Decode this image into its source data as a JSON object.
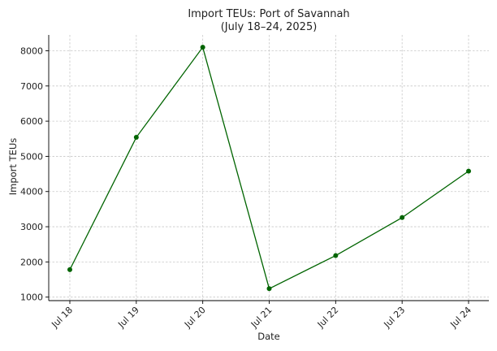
{
  "chart_data": {
    "type": "line",
    "title_line1": "Import TEUs: Port of Savannah",
    "title_line2": "(July 18–24, 2025)",
    "xlabel": "Date",
    "ylabel": "Import TEUs",
    "categories": [
      "Jul 18",
      "Jul 19",
      "Jul 20",
      "Jul 21",
      "Jul 22",
      "Jul 23",
      "Jul 24"
    ],
    "series": [
      {
        "values": [
          1780,
          5540,
          8100,
          1240,
          2180,
          3260,
          4580
        ],
        "color": "#006400"
      }
    ],
    "yticks": [
      1000,
      2000,
      3000,
      4000,
      5000,
      6000,
      7000,
      8000
    ],
    "ylim": [
      900,
      8450
    ],
    "grid": true,
    "x_tick_rotation": -45
  }
}
